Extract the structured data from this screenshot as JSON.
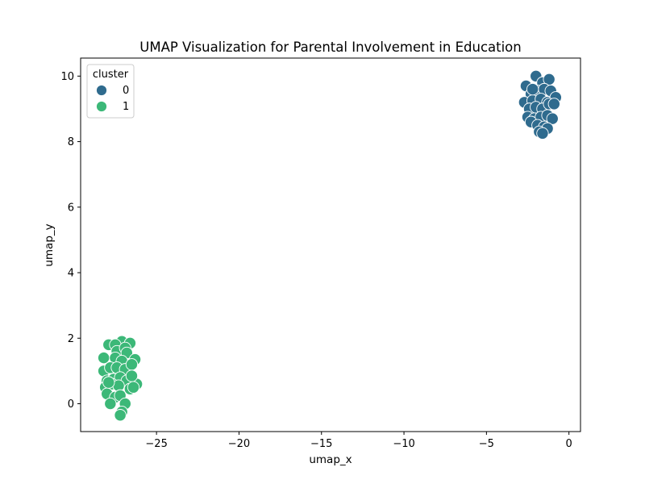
{
  "chart_data": {
    "type": "scatter",
    "title": "UMAP Visualization for Parental Involvement in Education",
    "xlabel": "umap_x",
    "ylabel": "umap_y",
    "xlim": [
      -29.6,
      0.7
    ],
    "ylim": [
      -0.85,
      10.55
    ],
    "xticks": [
      -25,
      -20,
      -15,
      -10,
      -5,
      0
    ],
    "xtick_labels": [
      "−25",
      "−20",
      "−15",
      "−10",
      "−5",
      "0"
    ],
    "yticks": [
      0,
      2,
      4,
      6,
      8,
      10
    ],
    "ytick_labels": [
      "0",
      "2",
      "4",
      "6",
      "8",
      "10"
    ],
    "grid": false,
    "legend": {
      "title": "cluster",
      "placement": "top-left"
    },
    "series": [
      {
        "name": "0",
        "color": "#2f6b8e",
        "points": [
          [
            -2.0,
            10.0
          ],
          [
            -2.6,
            9.7
          ],
          [
            -1.6,
            9.8
          ],
          [
            -1.2,
            9.9
          ],
          [
            -2.3,
            9.45
          ],
          [
            -1.9,
            9.55
          ],
          [
            -1.5,
            9.6
          ],
          [
            -1.1,
            9.55
          ],
          [
            -2.7,
            9.2
          ],
          [
            -2.2,
            9.25
          ],
          [
            -1.7,
            9.3
          ],
          [
            -1.3,
            9.2
          ],
          [
            -0.8,
            9.35
          ],
          [
            -2.4,
            9.0
          ],
          [
            -2.0,
            9.05
          ],
          [
            -1.6,
            9.0
          ],
          [
            -1.2,
            9.15
          ],
          [
            -0.9,
            9.15
          ],
          [
            -2.5,
            8.75
          ],
          [
            -2.1,
            8.7
          ],
          [
            -1.7,
            8.75
          ],
          [
            -1.3,
            8.8
          ],
          [
            -1.0,
            8.7
          ],
          [
            -2.3,
            8.6
          ],
          [
            -1.9,
            8.5
          ],
          [
            -1.5,
            8.45
          ],
          [
            -1.3,
            8.4
          ],
          [
            -1.8,
            8.3
          ],
          [
            -1.6,
            8.25
          ],
          [
            -2.2,
            9.6
          ]
        ]
      },
      {
        "name": "1",
        "color": "#3cb878",
        "points": [
          [
            -27.1,
            1.9
          ],
          [
            -27.9,
            1.8
          ],
          [
            -27.5,
            1.8
          ],
          [
            -26.6,
            1.85
          ],
          [
            -27.4,
            1.6
          ],
          [
            -26.9,
            1.7
          ],
          [
            -28.2,
            1.4
          ],
          [
            -27.5,
            1.4
          ],
          [
            -26.8,
            1.55
          ],
          [
            -26.3,
            1.35
          ],
          [
            -27.1,
            1.3
          ],
          [
            -28.2,
            1.0
          ],
          [
            -27.8,
            1.1
          ],
          [
            -27.4,
            1.1
          ],
          [
            -26.9,
            1.05
          ],
          [
            -26.5,
            1.2
          ],
          [
            -28.0,
            0.7
          ],
          [
            -27.6,
            0.75
          ],
          [
            -27.2,
            0.8
          ],
          [
            -26.8,
            0.7
          ],
          [
            -26.2,
            0.6
          ],
          [
            -28.1,
            0.5
          ],
          [
            -27.7,
            0.6
          ],
          [
            -27.3,
            0.55
          ],
          [
            -26.6,
            0.45
          ],
          [
            -28.0,
            0.3
          ],
          [
            -27.5,
            0.2
          ],
          [
            -27.2,
            0.25
          ],
          [
            -27.8,
            0.0
          ],
          [
            -26.9,
            0.0
          ],
          [
            -27.1,
            -0.25
          ],
          [
            -27.2,
            -0.35
          ],
          [
            -26.5,
            0.85
          ],
          [
            -27.9,
            0.65
          ],
          [
            -26.4,
            0.5
          ]
        ]
      }
    ]
  }
}
